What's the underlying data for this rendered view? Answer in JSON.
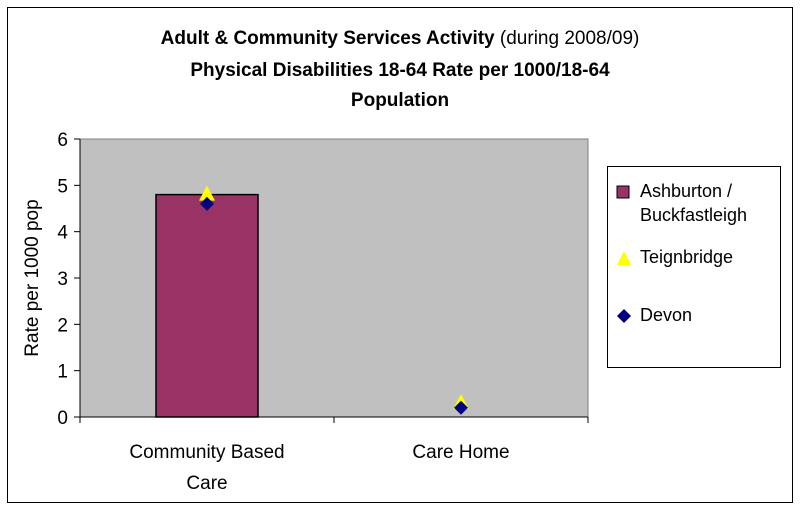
{
  "chart_data": {
    "type": "bar",
    "title_bold": "Adult & Community Services Activity",
    "title_normal": " (during 2008/09)",
    "subtitle_line1": "Physical Disabilities 18-64 Rate per 1000/18-64",
    "subtitle_line2": "Population",
    "ylabel": "Rate per 1000 pop",
    "ylim": [
      0,
      6
    ],
    "yticks": [
      "0",
      "1",
      "2",
      "3",
      "4",
      "5",
      "6"
    ],
    "categories": [
      {
        "line1": "Community Based",
        "line2": "Care"
      },
      {
        "line1": "Care Home",
        "line2": ""
      }
    ],
    "series": [
      {
        "name": "Ashburton / Buckfastleigh",
        "name_line1": "Ashburton /",
        "name_line2": "Buckfastleigh",
        "kind": "bar",
        "color": "#993366",
        "values": [
          4.8,
          0
        ]
      },
      {
        "name": "Teignbridge",
        "kind": "triangle",
        "color": "#ffff00",
        "values": [
          4.8,
          0.3
        ]
      },
      {
        "name": "Devon",
        "kind": "diamond",
        "color": "#000080",
        "values": [
          4.6,
          0.2
        ]
      }
    ],
    "plot_background": "#c0c0c0",
    "grid": false,
    "legend_position": "right"
  }
}
